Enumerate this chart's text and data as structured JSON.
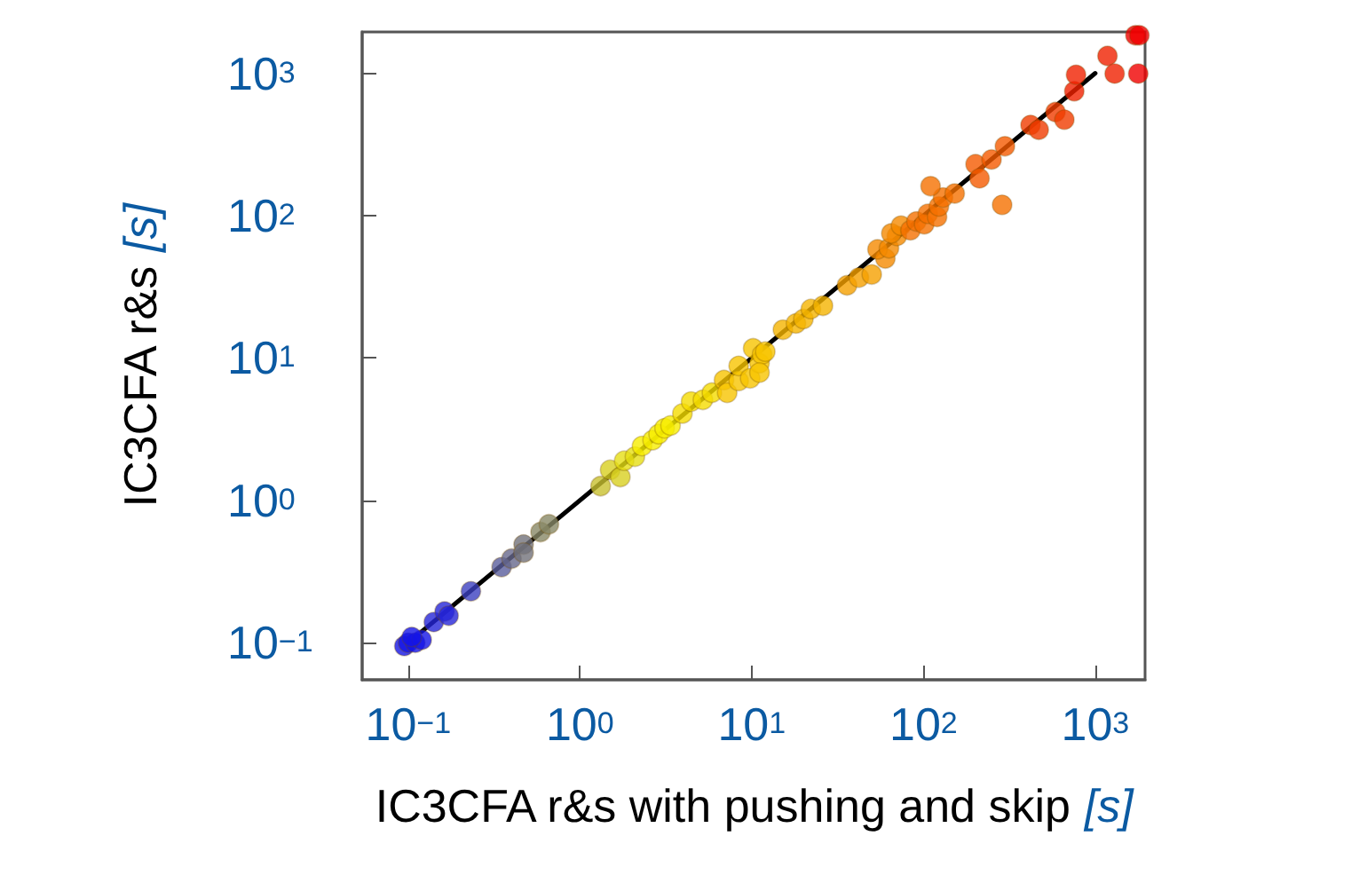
{
  "chart_data": {
    "type": "scatter",
    "xlabel": "IC3CFA r&s with pushing and skip [s]",
    "ylabel": "IC3CFA r&s [s]",
    "log": "xy",
    "grid": false,
    "marker": "circle",
    "xlim": [
      0.054,
      1950
    ],
    "ylim": [
      0.055,
      1950
    ],
    "xticks": [
      {
        "value": 0.1,
        "label": "10$^{−1}$"
      },
      {
        "value": 1,
        "label": "10$^{0}$"
      },
      {
        "value": 10,
        "label": "10$^{1}$"
      },
      {
        "value": 100,
        "label": "10$^{2}$"
      },
      {
        "value": 1000,
        "label": "10$^{3}$"
      }
    ],
    "yticks": [
      {
        "value": 0.1,
        "label": "10$^{−1}$"
      },
      {
        "value": 1,
        "label": "10$^{0}$"
      },
      {
        "value": 10,
        "label": "10$^{1}$"
      },
      {
        "value": 100,
        "label": "10$^{2}$"
      },
      {
        "value": 1000,
        "label": "10$^{3}$"
      }
    ],
    "series": [
      {
        "type": "line",
        "marker": "none",
        "line_style": "solid",
        "color": "#000000",
        "x": [
          0.12,
          1000
        ],
        "values": [
          0.12,
          1000
        ]
      },
      {
        "x": [
          0.095,
          0.1,
          0.11,
          0.12,
          0.105,
          0.141,
          0.163,
          0.172,
          0.232,
          0.35,
          0.4,
          0.47,
          0.47,
          0.59,
          0.66,
          1.32,
          1.5,
          1.72,
          1.81,
          2.09,
          2.3,
          2.65,
          2.87,
          3.11,
          3.37,
          3.95,
          4.44,
          5.2,
          5.87,
          6.9,
          7.2,
          8.4,
          8.4,
          9.8,
          10.2,
          11.1,
          11.5,
          11.1,
          12,
          15.2,
          18.1,
          20,
          22.1,
          26,
          35.9,
          42.1,
          50,
          60,
          54,
          63,
          70,
          65,
          74,
          84,
          91,
          101,
          106,
          120,
          123,
          130,
          152,
          110,
          287,
          201,
          212,
          249,
          298,
          420,
          469,
          587,
          661,
          755,
          773,
          1178,
          1297,
          1714,
          1807,
          1780
        ],
        "values": [
          0.095,
          0.1,
          0.1,
          0.105,
          0.11,
          0.14,
          0.166,
          0.155,
          0.23,
          0.34,
          0.39,
          0.49,
          0.43,
          0.6,
          0.68,
          1.26,
          1.64,
          1.46,
          1.9,
          2.03,
          2.41,
          2.65,
          2.92,
          3.21,
          3.36,
          4.08,
          4.94,
          5.09,
          5.71,
          7.0,
          5.7,
          6.9,
          8.8,
          7.2,
          11.7,
          9.2,
          10.6,
          7.9,
          11.1,
          15.8,
          17.5,
          18.8,
          22.1,
          23.3,
          32.4,
          36.7,
          38.6,
          50,
          58,
          59,
          72,
          75,
          85,
          79,
          91,
          87,
          103,
          98,
          116,
          134,
          143,
          161,
          119,
          230,
          183,
          248,
          307,
          433,
          401,
          534,
          472,
          747,
          975,
          1324,
          995,
          1848,
          1848,
          995
        ],
        "colors": [
          "#1414e6",
          "#1414e6",
          "#1414e6",
          "#1414e6",
          "#1414e6",
          "#2626d8",
          "#2626d8",
          "#2626d8",
          "#3c40c0",
          "#5a5e9c",
          "#66688c",
          "#72727a",
          "#72727a",
          "#888866",
          "#888866",
          "#c8c030",
          "#d8d020",
          "#d8d020",
          "#e6df14",
          "#e6df14",
          "#f8ee00",
          "#f8ee00",
          "#f8ee00",
          "#f8ee00",
          "#f8ee00",
          "#f5dc00",
          "#f5dc00",
          "#f5dc00",
          "#f5dc00",
          "#f8c400",
          "#f8c400",
          "#f8c400",
          "#f8c400",
          "#f8c400",
          "#f8c400",
          "#f8c400",
          "#f8c400",
          "#f8c400",
          "#f8c400",
          "#f5b400",
          "#f5b400",
          "#f5b400",
          "#f5b400",
          "#f5b400",
          "#f5a000",
          "#f5a000",
          "#f5a000",
          "#f58a00",
          "#f58a00",
          "#f58a00",
          "#f58a00",
          "#f58a00",
          "#f58a00",
          "#f57000",
          "#f57000",
          "#f57000",
          "#f57000",
          "#f57000",
          "#f57000",
          "#f57000",
          "#f57000",
          "#f57000",
          "#f57000",
          "#f55a00",
          "#f55a00",
          "#f55a00",
          "#f55a00",
          "#f03c00",
          "#f03c00",
          "#f03c00",
          "#f03c00",
          "#f02000",
          "#f02000",
          "#f02000",
          "#f02000",
          "#f00000",
          "#f00000",
          "#f00000"
        ]
      }
    ]
  }
}
